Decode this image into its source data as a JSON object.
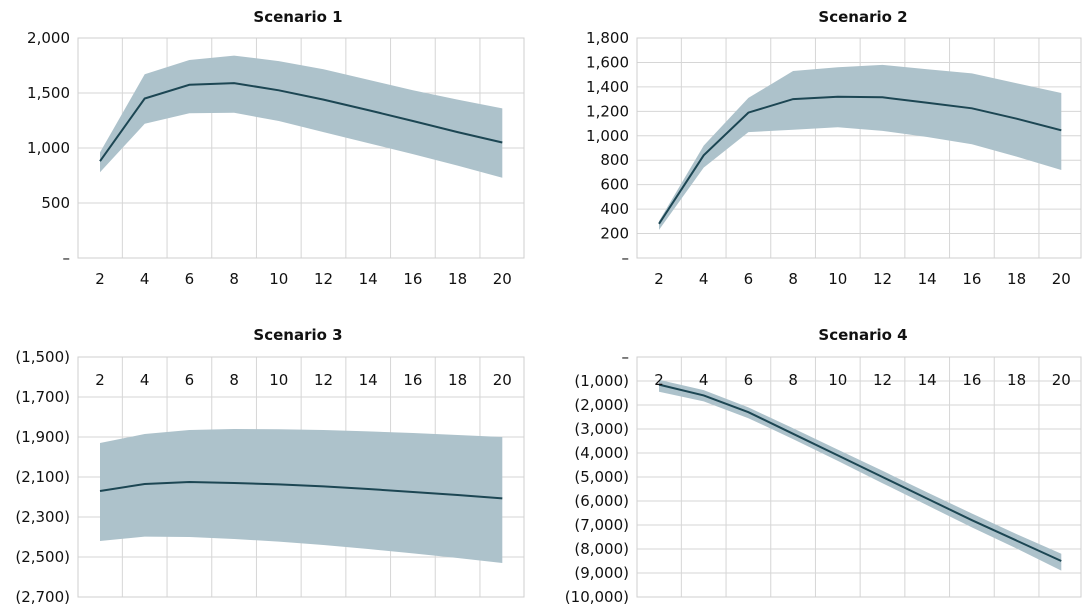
{
  "colors": {
    "band": "#adc2cb",
    "line": "#1c4653"
  },
  "chart_data": [
    {
      "type": "area",
      "title": "Scenario 1",
      "x": [
        2,
        4,
        6,
        8,
        10,
        12,
        14,
        16,
        18,
        20
      ],
      "xticks": [
        "2",
        "4",
        "6",
        "8",
        "10",
        "12",
        "14",
        "16",
        "18",
        "20"
      ],
      "ylim": [
        0,
        2000
      ],
      "yticks": [
        0,
        500,
        1000,
        1500,
        2000
      ],
      "ytick_labels": [
        "–",
        "500",
        "1,000",
        "1,500",
        "2,000"
      ],
      "x_axis_position": "bottom",
      "series": [
        {
          "role": "central",
          "values": [
            880,
            1450,
            1575,
            1590,
            1525,
            1440,
            1345,
            1245,
            1145,
            1050
          ]
        },
        {
          "role": "upper",
          "values": [
            960,
            1670,
            1800,
            1840,
            1790,
            1715,
            1620,
            1525,
            1440,
            1360
          ]
        },
        {
          "role": "lower",
          "values": [
            780,
            1220,
            1315,
            1320,
            1245,
            1145,
            1045,
            945,
            840,
            730
          ]
        }
      ]
    },
    {
      "type": "area",
      "title": "Scenario 2",
      "x": [
        2,
        4,
        6,
        8,
        10,
        12,
        14,
        16,
        18,
        20
      ],
      "xticks": [
        "2",
        "4",
        "6",
        "8",
        "10",
        "12",
        "14",
        "16",
        "18",
        "20"
      ],
      "ylim": [
        0,
        1800
      ],
      "yticks": [
        0,
        200,
        400,
        600,
        800,
        1000,
        1200,
        1400,
        1600,
        1800
      ],
      "ytick_labels": [
        "–",
        "200",
        "400",
        "600",
        "800",
        "1,000",
        "1,200",
        "1,400",
        "1,600",
        "1,800"
      ],
      "x_axis_position": "bottom",
      "series": [
        {
          "role": "central",
          "values": [
            280,
            840,
            1190,
            1300,
            1320,
            1315,
            1270,
            1225,
            1140,
            1045
          ]
        },
        {
          "role": "upper",
          "values": [
            300,
            920,
            1310,
            1530,
            1560,
            1580,
            1545,
            1510,
            1430,
            1350
          ]
        },
        {
          "role": "lower",
          "values": [
            230,
            740,
            1030,
            1050,
            1070,
            1040,
            990,
            930,
            830,
            720
          ]
        }
      ]
    },
    {
      "type": "area",
      "title": "Scenario 3",
      "x": [
        2,
        4,
        6,
        8,
        10,
        12,
        14,
        16,
        18,
        20
      ],
      "xticks": [
        "2",
        "4",
        "6",
        "8",
        "10",
        "12",
        "14",
        "16",
        "18",
        "20"
      ],
      "ylim": [
        -2700,
        -1500
      ],
      "yticks": [
        -1500,
        -1700,
        -1900,
        -2100,
        -2300,
        -2500,
        -2700
      ],
      "ytick_labels": [
        "(1,500)",
        "(1,700)",
        "(1,900)",
        "(2,100)",
        "(2,300)",
        "(2,500)",
        "(2,700)"
      ],
      "x_axis_position": "top",
      "series": [
        {
          "role": "central",
          "values": [
            -2170,
            -2135,
            -2125,
            -2130,
            -2137,
            -2147,
            -2160,
            -2175,
            -2190,
            -2207
          ]
        },
        {
          "role": "upper",
          "values": [
            -1930,
            -1885,
            -1865,
            -1860,
            -1861,
            -1865,
            -1872,
            -1880,
            -1890,
            -1900
          ]
        },
        {
          "role": "lower",
          "values": [
            -2420,
            -2398,
            -2400,
            -2410,
            -2423,
            -2440,
            -2460,
            -2482,
            -2505,
            -2530
          ]
        }
      ]
    },
    {
      "type": "area",
      "title": "Scenario 4",
      "x": [
        2,
        4,
        6,
        8,
        10,
        12,
        14,
        16,
        18,
        20
      ],
      "xticks": [
        "2",
        "4",
        "6",
        "8",
        "10",
        "12",
        "14",
        "16",
        "18",
        "20"
      ],
      "ylim": [
        -10000,
        0
      ],
      "yticks": [
        0,
        -1000,
        -2000,
        -3000,
        -4000,
        -5000,
        -6000,
        -7000,
        -8000,
        -9000,
        -10000
      ],
      "ytick_labels": [
        "–",
        "(1,000)",
        "(2,000)",
        "(3,000)",
        "(4,000)",
        "(5,000)",
        "(6,000)",
        "(7,000)",
        "(8,000)",
        "(9,000)",
        "(10,000)"
      ],
      "x_axis_position": "top",
      "series": [
        {
          "role": "central",
          "values": [
            -1150,
            -1600,
            -2300,
            -3200,
            -4100,
            -5000,
            -5900,
            -6800,
            -7650,
            -8500
          ]
        },
        {
          "role": "upper",
          "values": [
            -950,
            -1380,
            -2100,
            -2970,
            -3860,
            -4740,
            -5640,
            -6520,
            -7380,
            -8200
          ]
        },
        {
          "role": "lower",
          "values": [
            -1450,
            -1850,
            -2550,
            -3420,
            -4330,
            -5260,
            -6180,
            -7100,
            -7980,
            -8900
          ]
        }
      ]
    }
  ]
}
